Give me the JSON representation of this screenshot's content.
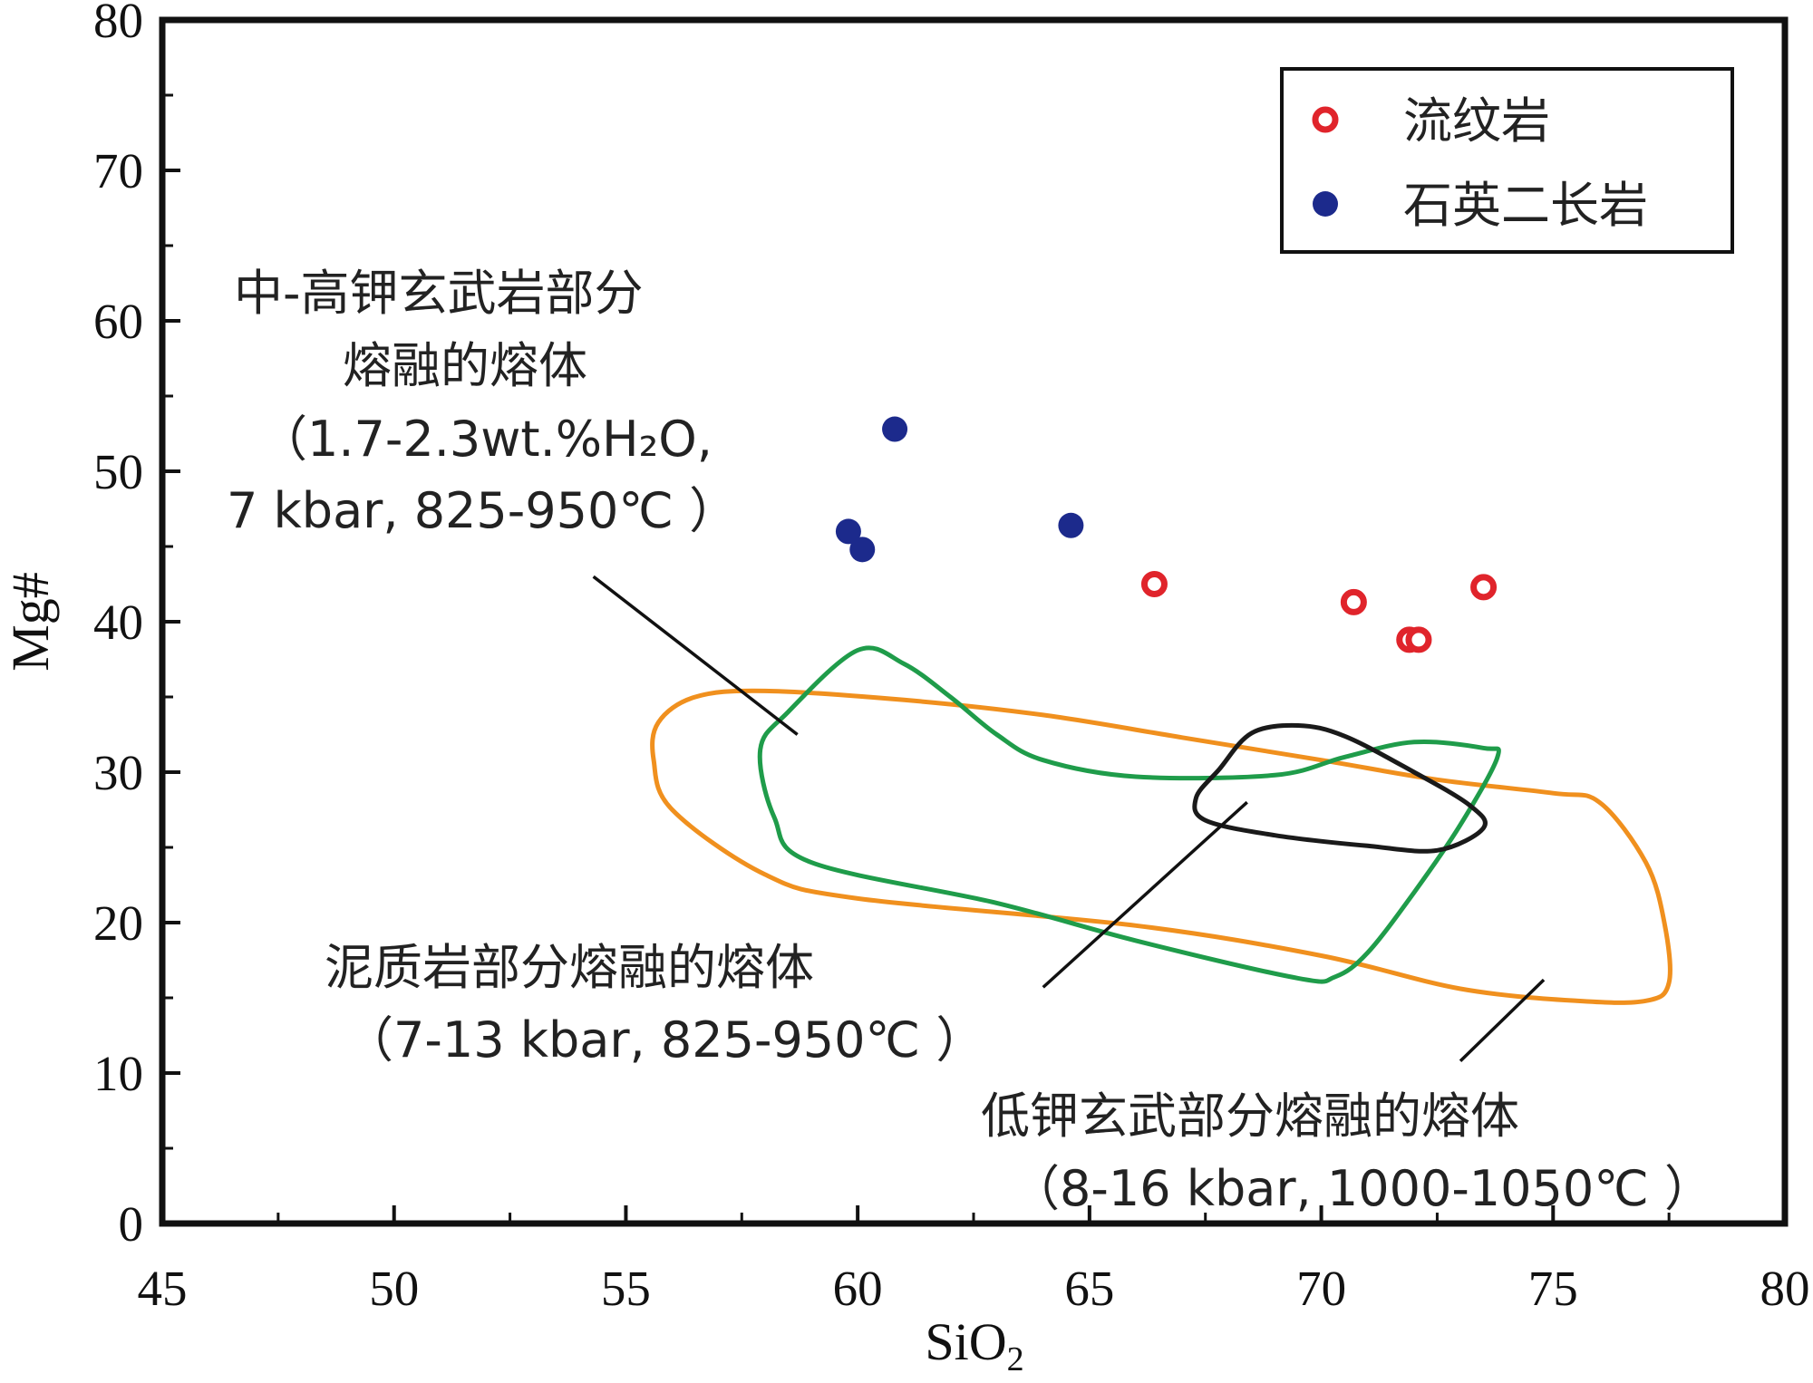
{
  "chart_data": {
    "type": "scatter",
    "title": "",
    "xlabel": "SiO2",
    "xlabel_main": "SiO",
    "xlabel_sub": "2",
    "ylabel": "Mg#",
    "xlim": [
      45,
      80
    ],
    "ylim": [
      0,
      80
    ],
    "xticks": [
      45,
      50,
      55,
      60,
      65,
      70,
      75,
      80
    ],
    "yticks": [
      0,
      10,
      20,
      30,
      40,
      50,
      60,
      70,
      80
    ],
    "legend_position": "top-right",
    "series": [
      {
        "name": "流纹岩",
        "marker": "open-circle",
        "color": "#e0242b",
        "points": [
          [
            66.4,
            42.5
          ],
          [
            70.7,
            41.3
          ],
          [
            71.9,
            38.8
          ],
          [
            72.1,
            38.8
          ],
          [
            73.5,
            42.3
          ]
        ]
      },
      {
        "name": "石英二长岩",
        "marker": "filled-circle",
        "color": "#1c2a8c",
        "points": [
          [
            59.8,
            46.0
          ],
          [
            60.1,
            44.8
          ],
          [
            60.8,
            52.8
          ],
          [
            64.6,
            46.4
          ]
        ]
      }
    ],
    "fields": [
      {
        "name": "low-k-basalt-melt",
        "color": "#f0901e",
        "outline": [
          [
            56.5,
            35.0
          ],
          [
            58.0,
            35.4
          ],
          [
            61.0,
            34.8
          ],
          [
            64.0,
            33.8
          ],
          [
            67.0,
            32.3
          ],
          [
            70.0,
            30.8
          ],
          [
            72.5,
            29.5
          ],
          [
            75.0,
            28.6
          ],
          [
            76.0,
            28.0
          ],
          [
            77.0,
            24.0
          ],
          [
            77.4,
            20.0
          ],
          [
            77.5,
            16.0
          ],
          [
            77.0,
            14.8
          ],
          [
            75.5,
            14.8
          ],
          [
            73.0,
            15.6
          ],
          [
            70.0,
            17.8
          ],
          [
            66.0,
            19.8
          ],
          [
            60.0,
            21.6
          ],
          [
            58.0,
            23.2
          ],
          [
            56.0,
            27.5
          ],
          [
            55.6,
            30.8
          ],
          [
            55.7,
            33.3
          ]
        ]
      },
      {
        "name": "mid-high-k-basalt-melt",
        "color": "#1f9c4a",
        "outline": [
          [
            60.0,
            38.1
          ],
          [
            61.0,
            37.2
          ],
          [
            62.0,
            35.0
          ],
          [
            63.0,
            32.5
          ],
          [
            64.0,
            30.8
          ],
          [
            66.0,
            29.7
          ],
          [
            69.0,
            29.8
          ],
          [
            70.5,
            31.0
          ],
          [
            72.0,
            32.0
          ],
          [
            73.5,
            31.6
          ],
          [
            73.8,
            31.0
          ],
          [
            73.0,
            26.5
          ],
          [
            72.0,
            22.0
          ],
          [
            71.0,
            18.0
          ],
          [
            70.3,
            16.4
          ],
          [
            69.5,
            16.3
          ],
          [
            66.0,
            18.8
          ],
          [
            63.0,
            21.3
          ],
          [
            59.0,
            24.0
          ],
          [
            58.2,
            27.0
          ],
          [
            57.9,
            31.5
          ],
          [
            58.5,
            34.0
          ]
        ]
      },
      {
        "name": "pelite-melt",
        "color": "#1a1a1a",
        "outline": [
          [
            68.5,
            32.6
          ],
          [
            69.5,
            33.1
          ],
          [
            70.5,
            32.4
          ],
          [
            72.0,
            30.0
          ],
          [
            73.2,
            27.8
          ],
          [
            73.5,
            26.3
          ],
          [
            72.5,
            24.8
          ],
          [
            71.0,
            25.1
          ],
          [
            69.0,
            25.8
          ],
          [
            67.5,
            26.8
          ],
          [
            67.3,
            28.3
          ],
          [
            67.8,
            30.2
          ]
        ]
      }
    ],
    "annotations": [
      {
        "id": "mid-high-k",
        "lines": [
          "中-高钾玄武岩部分",
          "熔融的熔体",
          "（1.7-2.3wt.%H₂O,",
          "7 kbar, 825-950℃ ）"
        ],
        "leader": [
          [
            54.3,
            43.0
          ],
          [
            58.7,
            32.5
          ]
        ]
      },
      {
        "id": "pelite",
        "lines": [
          "泥质岩部分熔融的熔体",
          "（7-13 kbar, 825-950℃ ）"
        ],
        "leader": [
          [
            64.0,
            15.7
          ],
          [
            68.4,
            28.0
          ]
        ]
      },
      {
        "id": "low-k",
        "lines": [
          "低钾玄武部分熔融的熔体",
          "（8-16 kbar, 1000-1050℃ ）"
        ],
        "leader": [
          [
            73.0,
            10.8
          ],
          [
            74.8,
            16.2
          ]
        ]
      }
    ]
  }
}
